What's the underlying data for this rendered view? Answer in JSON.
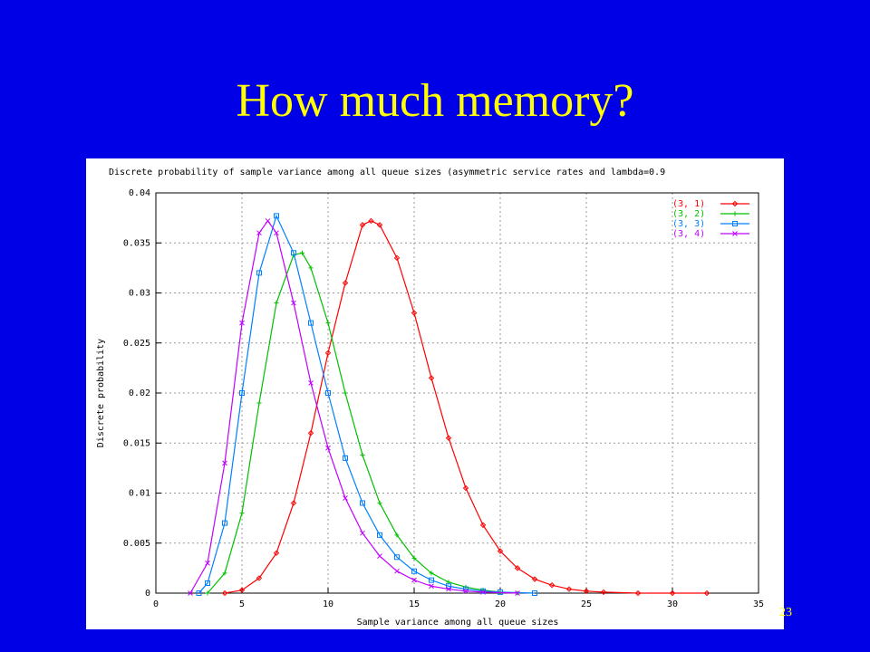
{
  "slide": {
    "title": "How much memory?",
    "page_number": "23"
  },
  "chart_data": {
    "type": "line",
    "title": "Discrete probability of sample variance among all queue sizes (asymmetric service rates and lambda=0.9",
    "x_label": "Sample variance among all queue sizes",
    "y_label": "Discrete probability",
    "xlim": [
      0,
      35
    ],
    "xticks": [
      0,
      5,
      10,
      15,
      20,
      25,
      30,
      35
    ],
    "ylim": [
      0,
      0.04
    ],
    "yticks": [
      0,
      0.005,
      0.01,
      0.015,
      0.02,
      0.025,
      0.03,
      0.035,
      0.04
    ],
    "grid": true,
    "legend": "top-right",
    "series": [
      {
        "name": "(3, 1)",
        "color": "#ff0000",
        "marker": "diamond",
        "x": [
          4,
          5,
          6,
          7,
          8,
          9,
          10,
          11,
          12,
          12.5,
          13,
          14,
          15,
          16,
          17,
          18,
          19,
          20,
          21,
          22,
          23,
          24,
          25,
          26,
          28,
          30,
          32
        ],
        "values": [
          0,
          0.0003,
          0.0015,
          0.004,
          0.009,
          0.016,
          0.024,
          0.031,
          0.0368,
          0.0372,
          0.0368,
          0.0335,
          0.028,
          0.0215,
          0.0155,
          0.0105,
          0.0068,
          0.0042,
          0.0025,
          0.0014,
          0.0008,
          0.0004,
          0.0002,
          0.0001,
          0,
          0,
          0
        ]
      },
      {
        "name": "(3, 2)",
        "color": "#00c000",
        "marker": "plus",
        "x": [
          3,
          4,
          5,
          6,
          7,
          8,
          8.5,
          9,
          10,
          11,
          12,
          13,
          14,
          15,
          16,
          17,
          18,
          19,
          20,
          21
        ],
        "values": [
          0,
          0.002,
          0.008,
          0.019,
          0.029,
          0.0338,
          0.034,
          0.0325,
          0.027,
          0.02,
          0.0138,
          0.009,
          0.0058,
          0.0035,
          0.002,
          0.0011,
          0.0006,
          0.0003,
          0.0001,
          0
        ]
      },
      {
        "name": "(3, 3)",
        "color": "#0080ff",
        "marker": "square",
        "x": [
          2.5,
          3,
          4,
          5,
          6,
          7,
          8,
          9,
          10,
          11,
          12,
          13,
          14,
          15,
          16,
          17,
          18,
          19,
          20,
          22
        ],
        "values": [
          0,
          0.001,
          0.007,
          0.02,
          0.032,
          0.0377,
          0.034,
          0.027,
          0.02,
          0.0135,
          0.009,
          0.0058,
          0.0036,
          0.0022,
          0.0013,
          0.0007,
          0.0004,
          0.0002,
          0.0001,
          0
        ]
      },
      {
        "name": "(3, 4)",
        "color": "#c000ff",
        "marker": "cross",
        "x": [
          2,
          3,
          4,
          5,
          6,
          6.5,
          7,
          8,
          9,
          10,
          11,
          12,
          13,
          14,
          15,
          16,
          17,
          18,
          19,
          21
        ],
        "values": [
          0,
          0.003,
          0.013,
          0.027,
          0.036,
          0.0372,
          0.036,
          0.029,
          0.021,
          0.0145,
          0.0095,
          0.006,
          0.0037,
          0.0022,
          0.0013,
          0.0007,
          0.0004,
          0.0002,
          0.0001,
          0
        ]
      }
    ]
  }
}
